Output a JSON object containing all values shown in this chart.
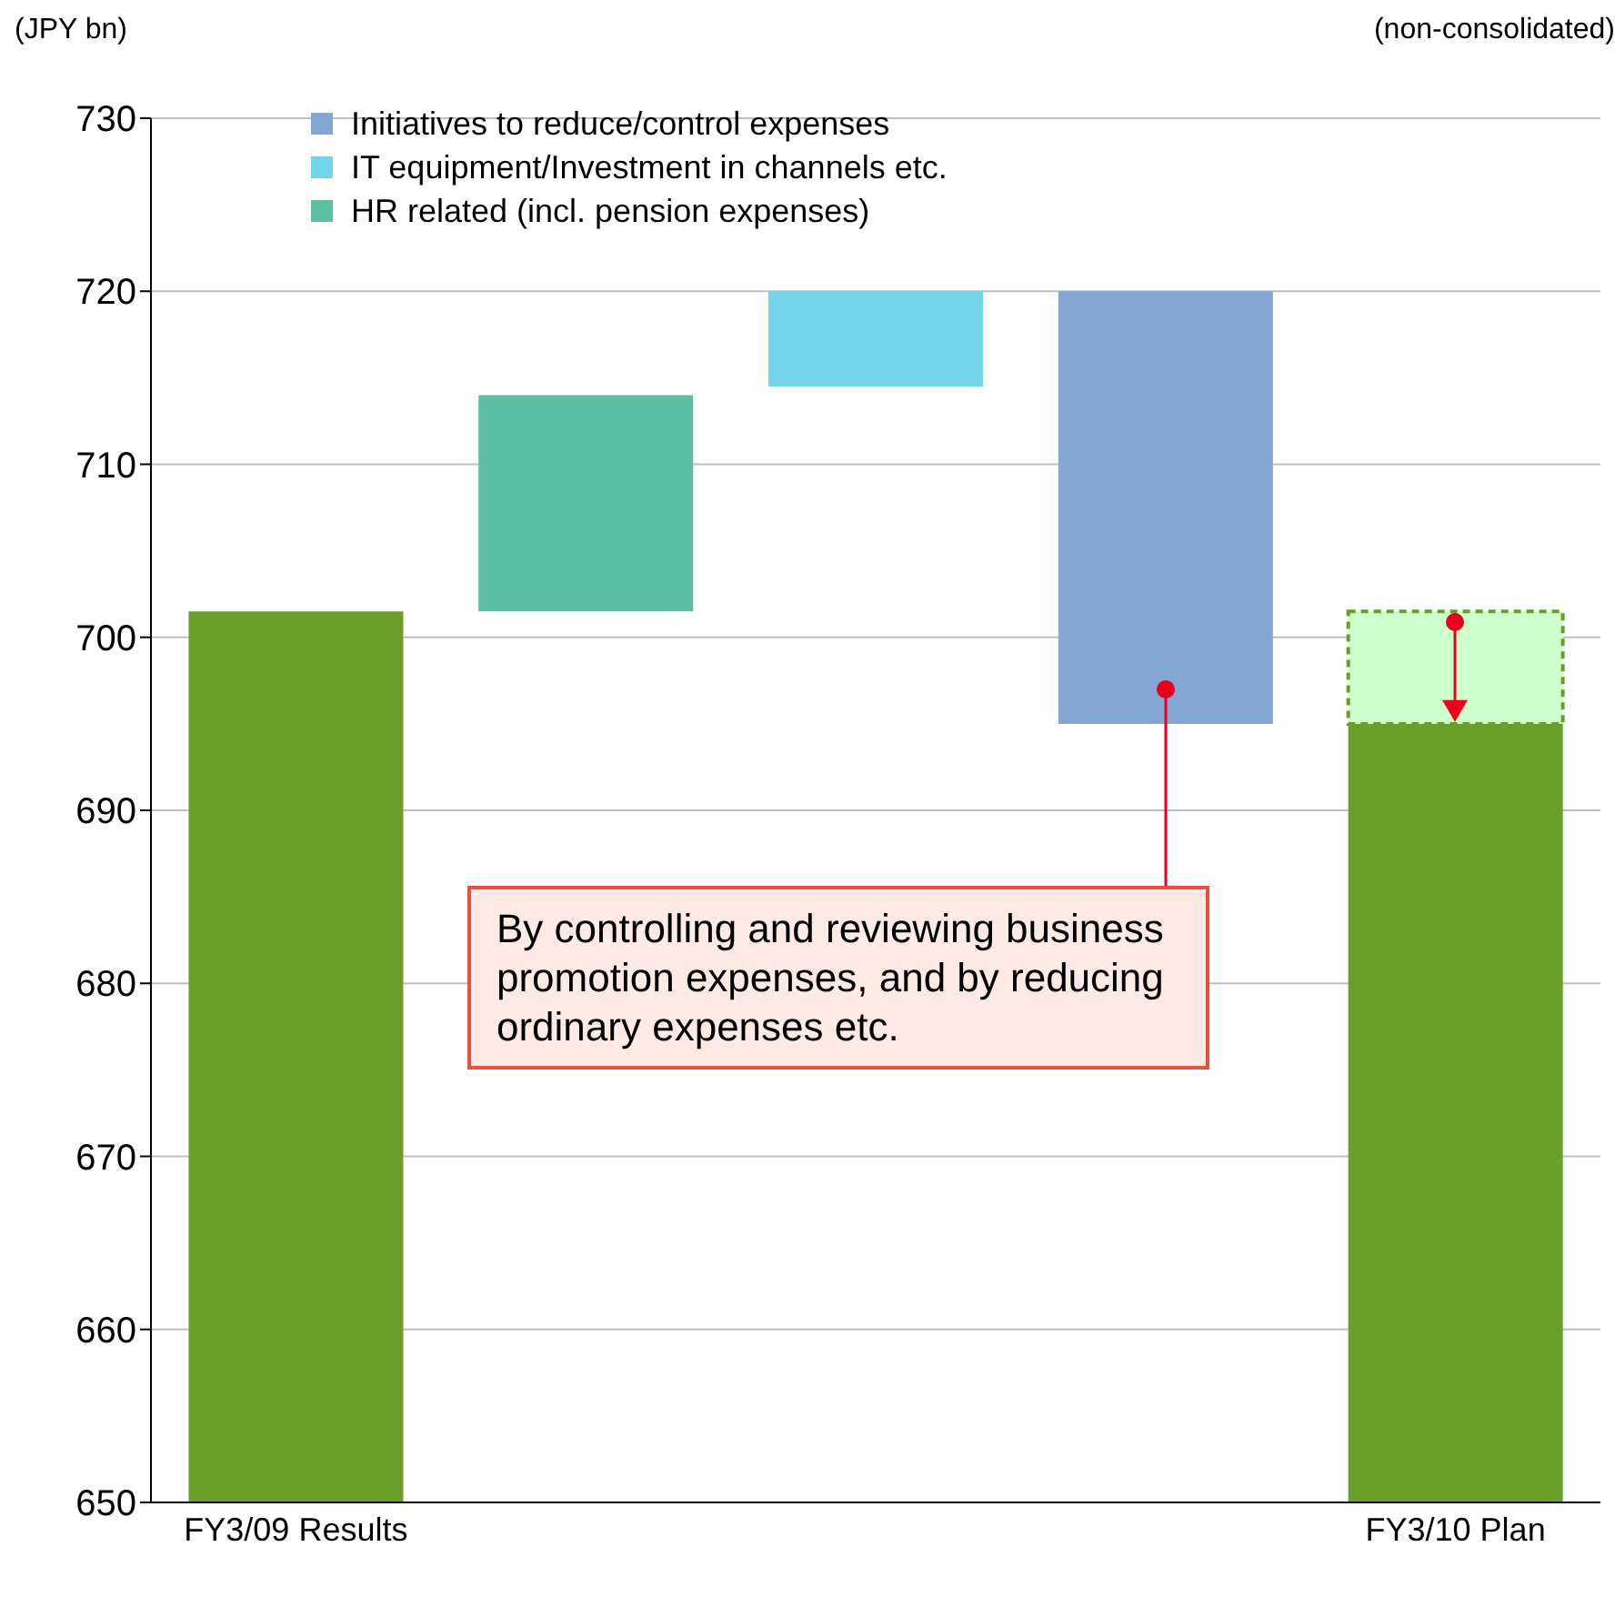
{
  "chart_data": {
    "type": "bar",
    "ylabel": "(JPY bn)",
    "categories": [
      "FY3/09 Results",
      null,
      null,
      null,
      "FY3/10 Plan"
    ],
    "series": [
      {
        "color": "#6a9e2a",
        "values": [
          51.5,
          null,
          null,
          null,
          45
        ],
        "base": [
          650,
          null,
          null,
          null,
          650
        ]
      },
      {
        "name": "HR related (incl. pension expenses)",
        "color": "#5cbfa4",
        "values": [
          null,
          12.5,
          null,
          null,
          null
        ],
        "base": [
          null,
          701.5,
          null,
          null,
          null
        ]
      },
      {
        "name": "IT equipment/Investment in channels etc.",
        "color": "#74d4ea",
        "values": [
          null,
          null,
          5.5,
          null,
          null
        ],
        "base": [
          null,
          null,
          714.5,
          null,
          null
        ]
      },
      {
        "name": "Initiatives to reduce/control expenses",
        "color": "#84a6d2",
        "values": [
          null,
          null,
          null,
          25,
          null
        ],
        "base": [
          null,
          null,
          null,
          695,
          null
        ]
      },
      {
        "color": "#ccffcc",
        "line_style": "dashed",
        "values": [
          null,
          null,
          null,
          null,
          6.5
        ],
        "base": [
          null,
          null,
          null,
          null,
          695
        ]
      }
    ],
    "ylim": [
      650,
      730
    ],
    "yticks": [
      650,
      660,
      670,
      680,
      690,
      700,
      710,
      720,
      730
    ],
    "grid": "y",
    "legend": "top",
    "annotations": [
      "(non-consolidated)",
      "By controlling and reviewing business promotion expenses, and by reducing ordinary expenses etc."
    ]
  }
}
